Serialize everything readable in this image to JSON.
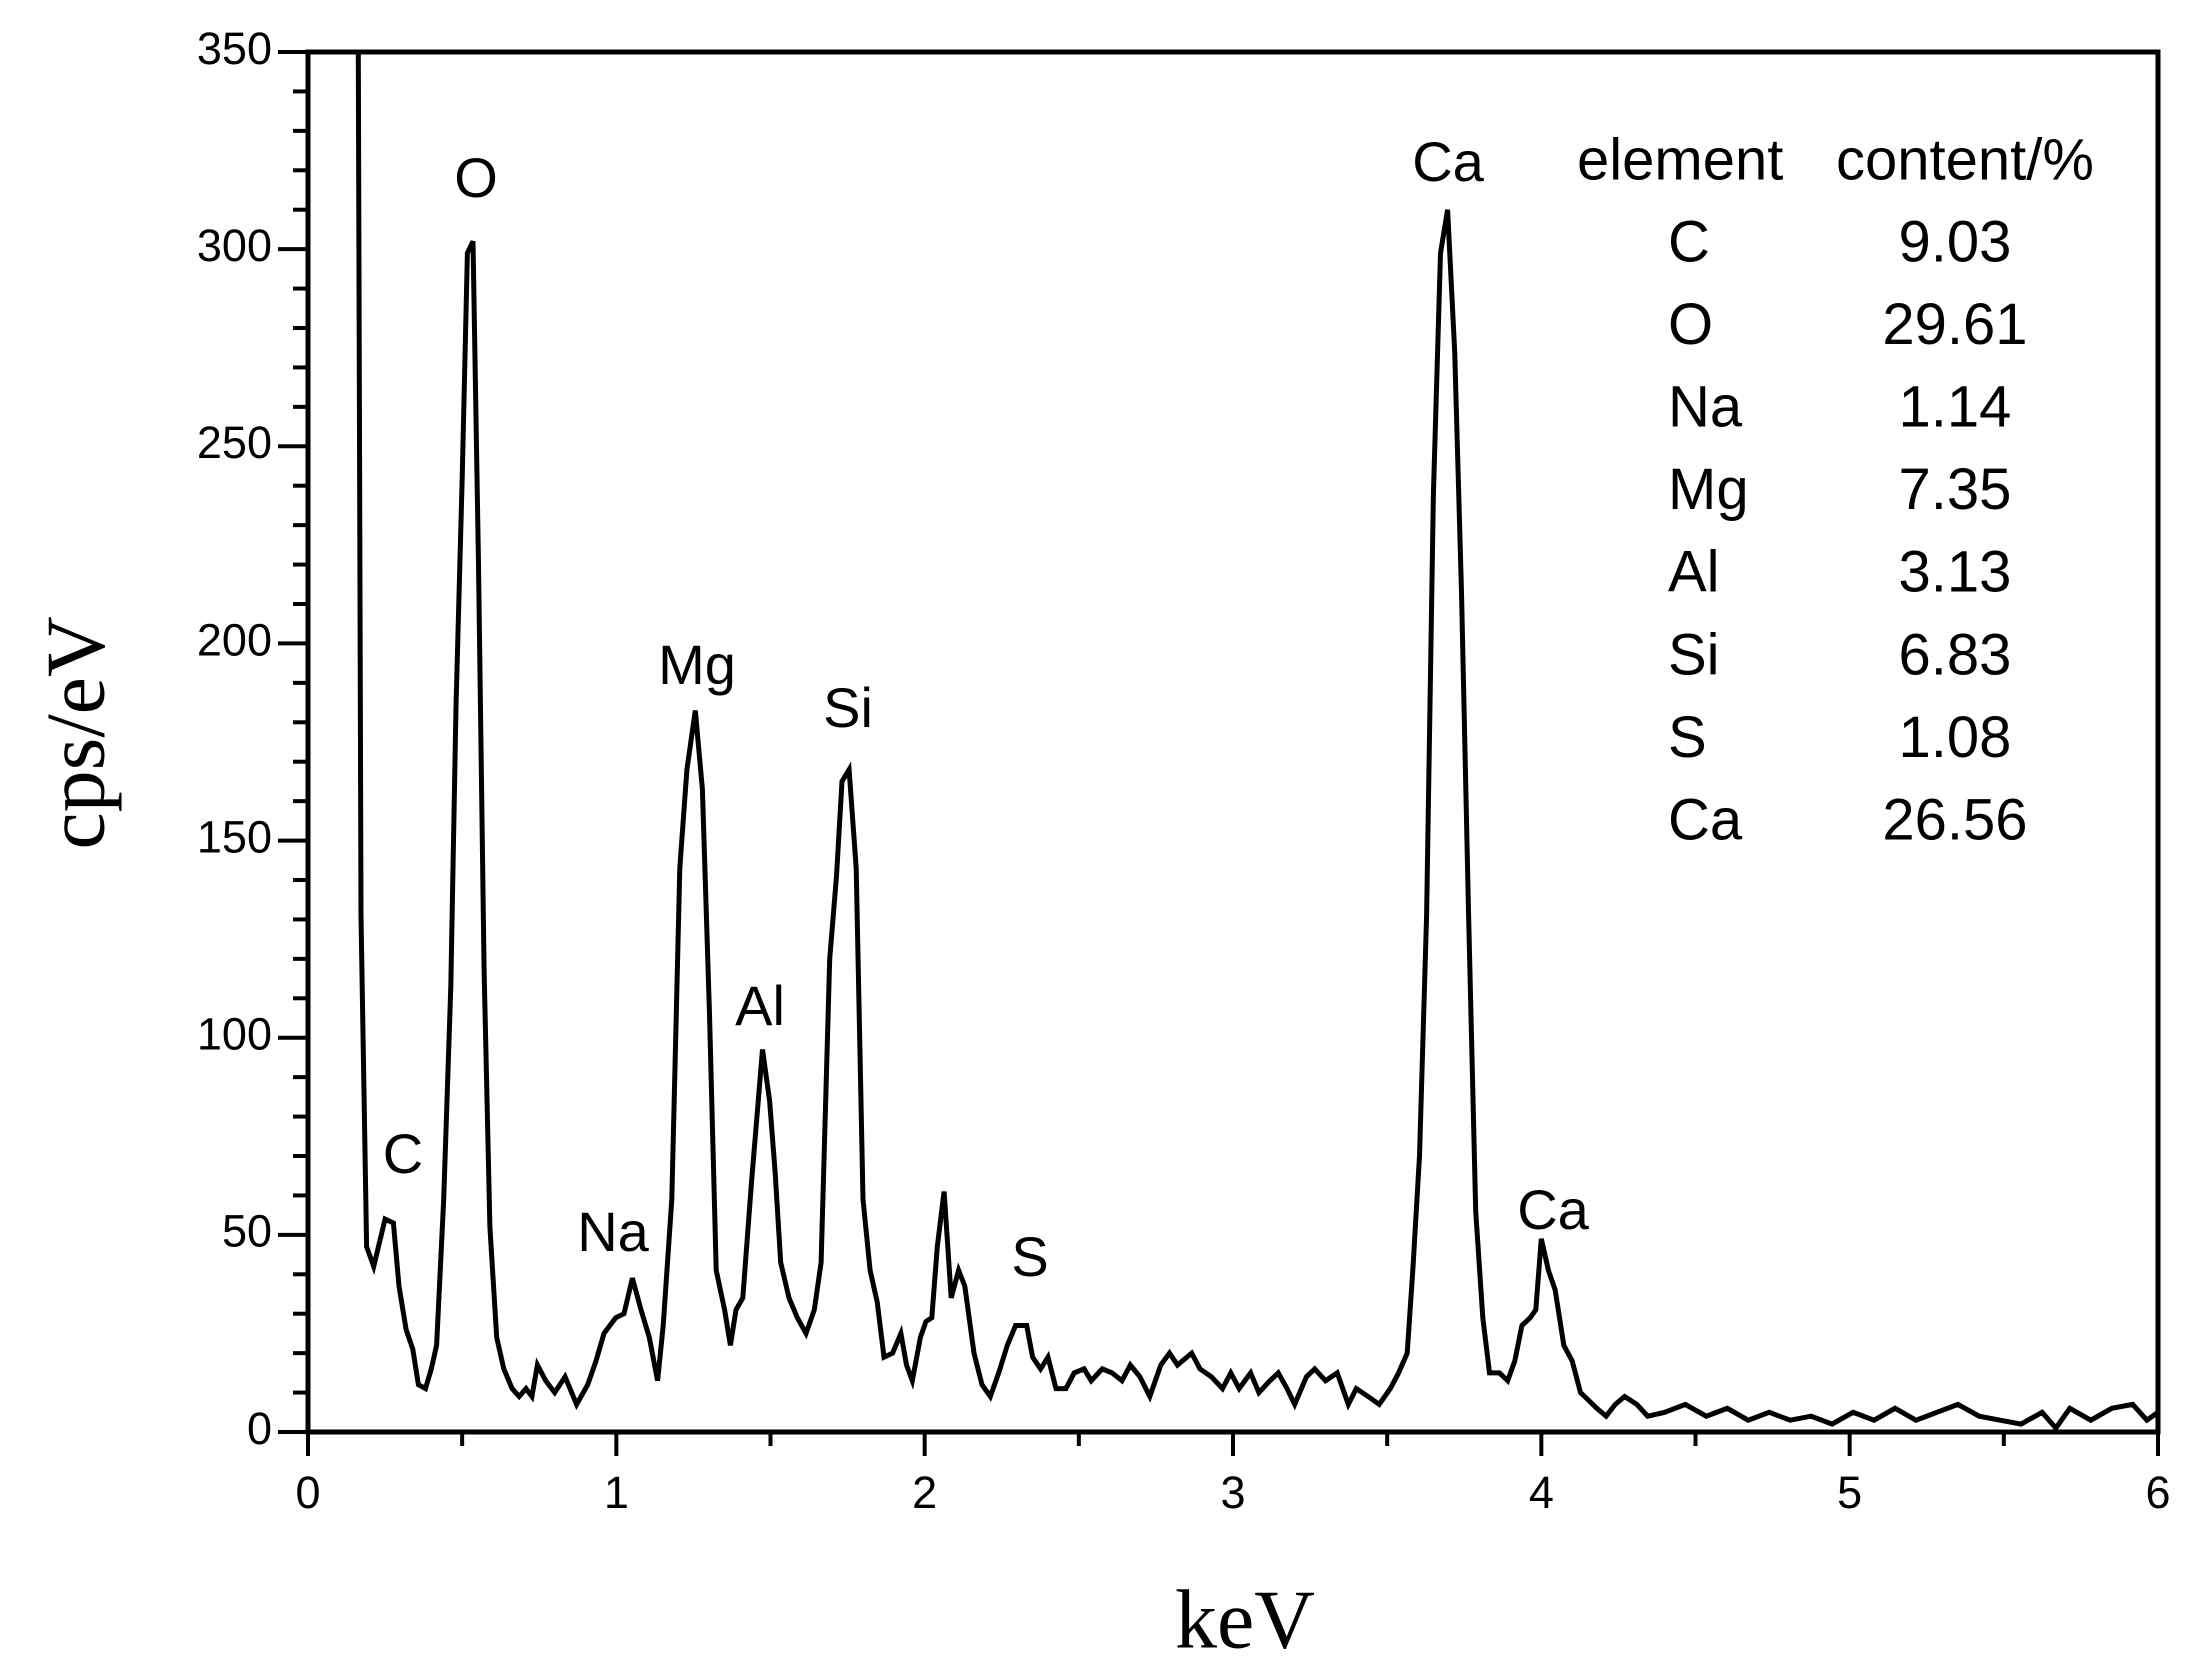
{
  "chart_data": {
    "type": "line",
    "x_label": "keV",
    "y_label": "cps/eV",
    "xlim": [
      0,
      6
    ],
    "ylim": [
      0,
      350
    ],
    "xticks": [
      0,
      1,
      2,
      3,
      4,
      5,
      6
    ],
    "yticks": [
      0,
      50,
      100,
      150,
      200,
      250,
      300,
      350
    ],
    "xminorticks": [
      0.5,
      1.5,
      2.5,
      3.5,
      4.5,
      5.5
    ],
    "yminorticks": [
      10,
      20,
      30,
      40,
      60,
      70,
      80,
      90,
      110,
      120,
      130,
      140,
      160,
      170,
      180,
      190,
      210,
      220,
      230,
      240,
      260,
      270,
      280,
      290,
      310,
      320,
      330,
      340
    ],
    "color": "#000000",
    "x": [
      0.163,
      0.172,
      0.19,
      0.213,
      0.25,
      0.277,
      0.295,
      0.318,
      0.34,
      0.358,
      0.381,
      0.4,
      0.417,
      0.44,
      0.463,
      0.48,
      0.5,
      0.517,
      0.535,
      0.553,
      0.571,
      0.59,
      0.612,
      0.635,
      0.662,
      0.685,
      0.707,
      0.726,
      0.744,
      0.771,
      0.8,
      0.834,
      0.871,
      0.907,
      0.934,
      0.96,
      0.998,
      1.025,
      1.052,
      1.08,
      1.107,
      1.134,
      1.152,
      1.18,
      1.206,
      1.229,
      1.256,
      1.279,
      1.302,
      1.324,
      1.351,
      1.37,
      1.388,
      1.41,
      1.438,
      1.474,
      1.497,
      1.515,
      1.533,
      1.56,
      1.587,
      1.615,
      1.642,
      1.664,
      1.692,
      1.714,
      1.732,
      1.755,
      1.778,
      1.8,
      1.823,
      1.846,
      1.868,
      1.896,
      1.923,
      1.941,
      1.96,
      1.986,
      2.004,
      2.023,
      2.041,
      2.063,
      2.086,
      2.11,
      2.13,
      2.16,
      2.186,
      2.213,
      2.24,
      2.268,
      2.295,
      2.331,
      2.35,
      2.376,
      2.4,
      2.426,
      2.458,
      2.485,
      2.517,
      2.54,
      2.576,
      2.608,
      2.64,
      2.667,
      2.698,
      2.73,
      2.766,
      2.794,
      2.82,
      2.866,
      2.893,
      2.93,
      2.966,
      2.993,
      3.02,
      3.057,
      3.084,
      3.12,
      3.147,
      3.175,
      3.2,
      3.238,
      3.265,
      3.3,
      3.338,
      3.374,
      3.4,
      3.438,
      3.474,
      3.51,
      3.537,
      3.565,
      3.583,
      3.605,
      3.628,
      3.65,
      3.673,
      3.696,
      3.719,
      3.741,
      3.764,
      3.787,
      3.81,
      3.832,
      3.864,
      3.891,
      3.914,
      3.937,
      3.964,
      3.982,
      4.0,
      4.023,
      4.045,
      4.073,
      4.1,
      4.127,
      4.154,
      4.18,
      4.21,
      4.24,
      4.27,
      4.31,
      4.345,
      4.4,
      4.467,
      4.535,
      4.603,
      4.671,
      4.739,
      4.807,
      4.875,
      4.943,
      5.011,
      5.079,
      5.147,
      5.215,
      5.283,
      5.351,
      5.42,
      5.488,
      5.556,
      5.624,
      5.669,
      5.714,
      5.782,
      5.85,
      5.918,
      5.964,
      6.0
    ],
    "values": [
      350,
      131,
      47,
      42,
      54,
      53,
      37,
      26,
      21,
      12,
      11,
      16,
      22,
      59,
      113,
      184,
      242,
      299,
      302,
      220,
      117,
      52,
      24,
      16,
      11,
      9,
      11,
      9,
      17,
      13,
      10,
      14,
      7,
      12,
      18,
      25,
      29,
      30,
      39,
      31,
      24,
      13,
      27,
      59,
      143,
      168,
      183,
      163,
      106,
      41,
      31,
      22,
      31,
      34,
      63,
      97,
      84,
      66,
      43,
      34,
      29,
      25,
      31,
      43,
      120,
      141,
      165,
      168,
      143,
      59,
      41,
      33,
      19,
      20,
      25,
      17,
      13,
      24,
      28,
      29,
      47,
      61,
      34,
      41,
      37,
      20,
      12,
      9,
      15,
      22,
      27,
      27,
      19,
      16,
      19,
      11,
      11,
      15,
      16,
      13,
      16,
      15,
      13,
      17,
      14,
      9,
      17,
      20,
      17,
      20,
      16,
      14,
      11,
      15,
      11,
      15,
      10,
      13,
      15,
      11,
      7,
      14,
      16,
      13,
      15,
      7,
      11,
      9,
      7,
      11,
      15,
      20,
      41,
      70,
      131,
      238,
      299,
      310,
      274,
      213,
      131,
      56,
      29,
      15,
      15,
      13,
      18,
      27,
      29,
      31,
      49,
      41,
      36,
      22,
      18,
      10,
      8,
      6,
      4,
      7,
      9,
      7,
      4,
      5,
      7,
      4,
      6,
      3,
      5,
      3,
      4,
      2,
      5,
      3,
      6,
      3,
      5,
      7,
      4,
      3,
      2,
      5,
      1,
      6,
      3,
      6,
      7,
      3,
      5
    ],
    "annotations": [
      "O",
      "C",
      "Na",
      "Mg",
      "Al",
      "Si",
      "S",
      "Ca",
      "Ca"
    ],
    "table": {
      "columns": [
        "element",
        "content/%"
      ],
      "rows": [
        [
          "C",
          9.03
        ],
        [
          "O",
          29.61
        ],
        [
          "Na",
          1.14
        ],
        [
          "Mg",
          7.35
        ],
        [
          "Al",
          3.13
        ],
        [
          "Si",
          6.83
        ],
        [
          "S",
          1.08
        ],
        [
          "Ca",
          26.56
        ]
      ]
    }
  }
}
